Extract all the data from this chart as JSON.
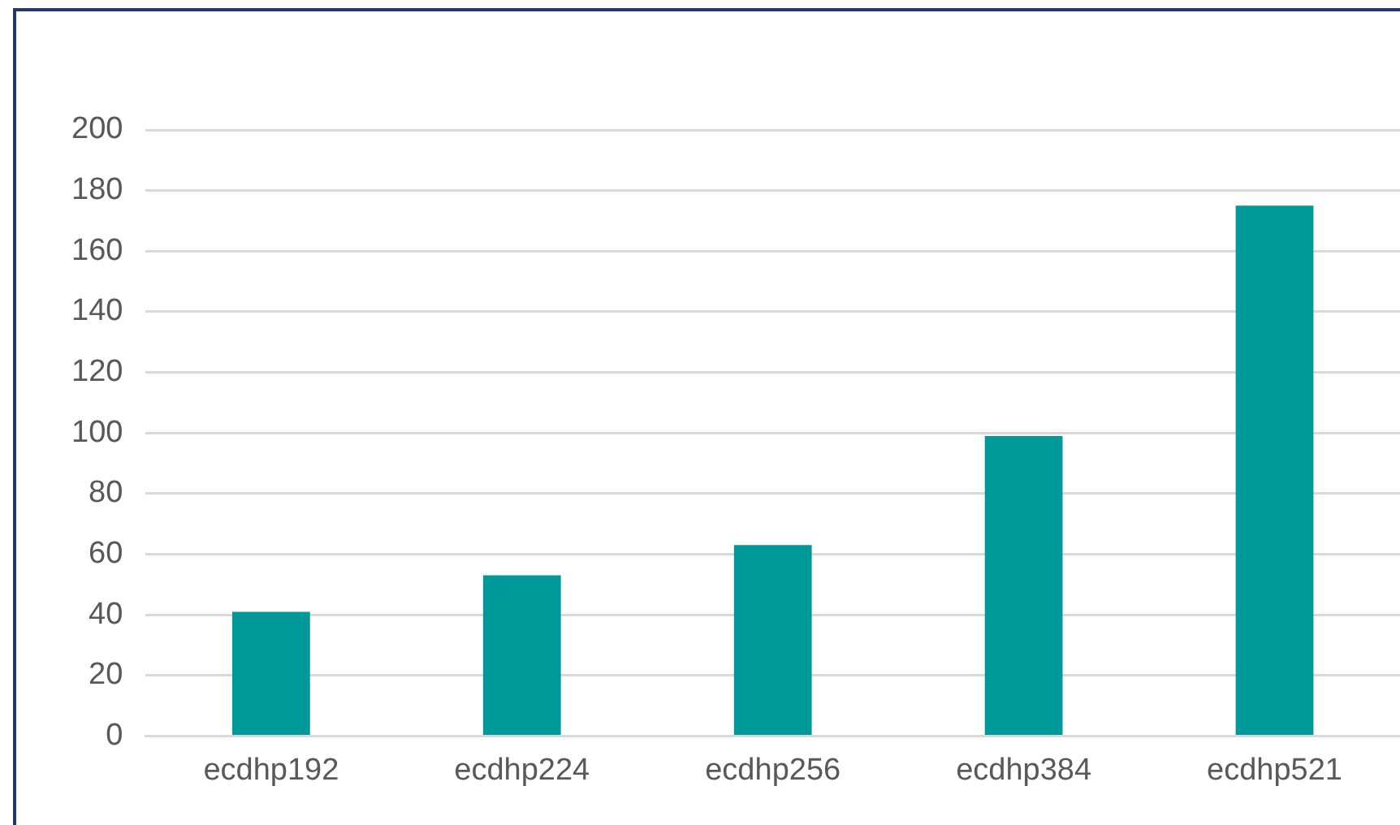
{
  "chart_data": {
    "type": "bar",
    "categories": [
      "ecdhp192",
      "ecdhp224",
      "ecdhp256",
      "ecdhp384",
      "ecdhp521"
    ],
    "values": [
      41,
      53,
      63,
      99,
      175
    ],
    "color": "#009999",
    "ylim": [
      0,
      200
    ],
    "yticks": [
      0,
      20,
      40,
      60,
      80,
      100,
      120,
      140,
      160,
      180,
      200
    ],
    "grid": "y"
  }
}
